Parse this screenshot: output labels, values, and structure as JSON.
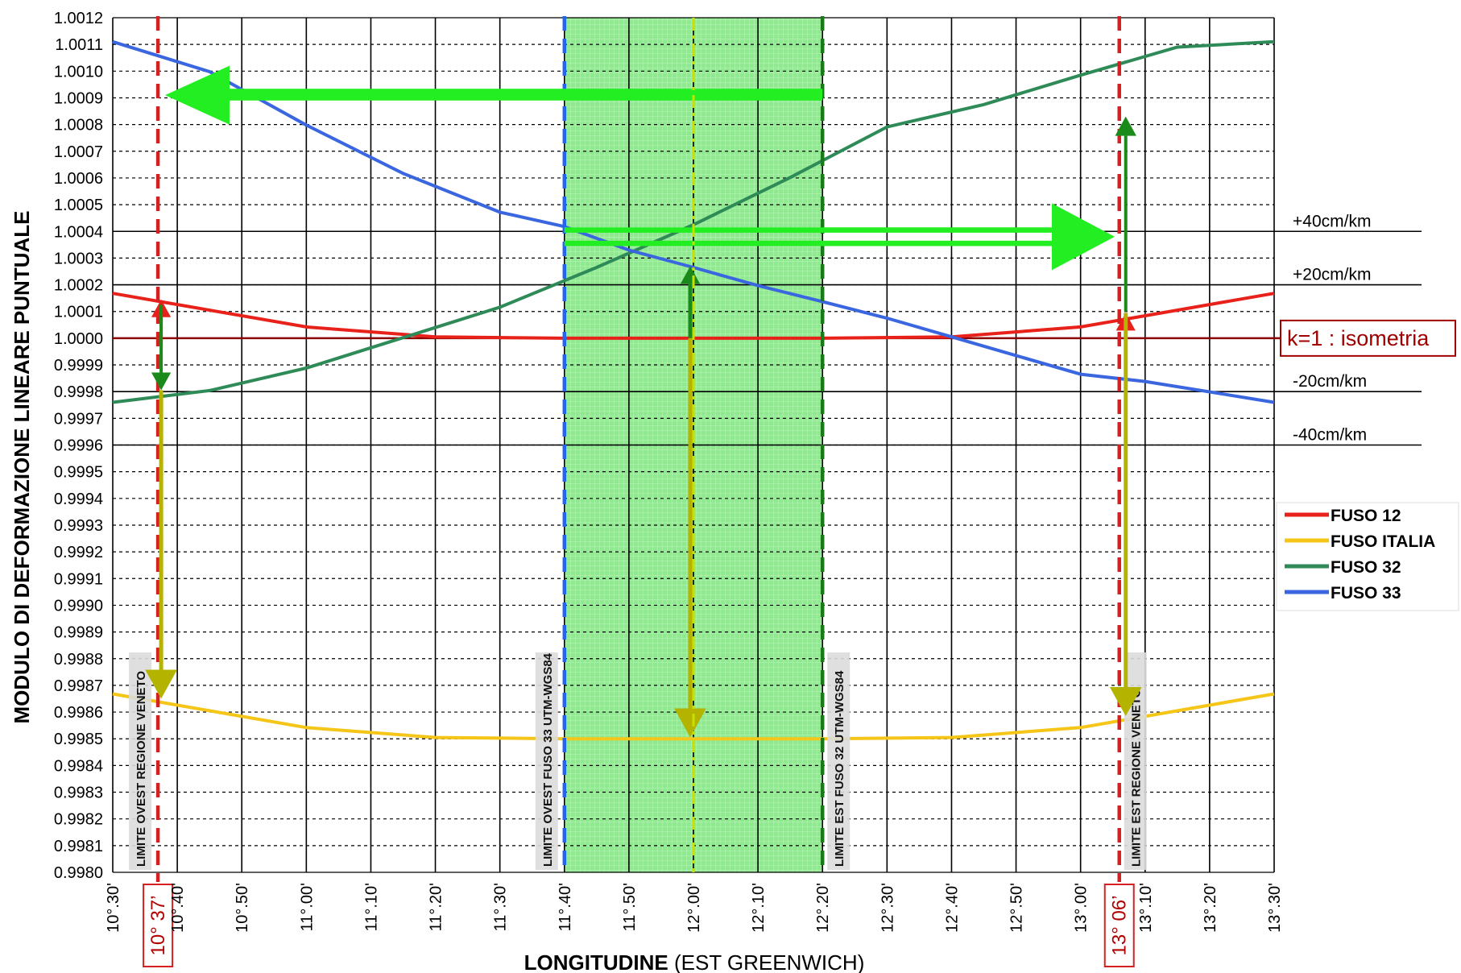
{
  "chart_data": {
    "type": "line",
    "ylabel": "MODULO DI DEFORMAZIONE LINEARE PUNTUALE",
    "xlabel_bold": "LONGITUDINE",
    "xlabel_rest": " (EST GREENWICH)",
    "ylim": [
      0.998,
      1.0012
    ],
    "y_step": 0.0001,
    "y_ticks": [
      "1.0012",
      "1.0011",
      "1.0010",
      "1.0009",
      "1.0008",
      "1.0007",
      "1.0006",
      "1.0005",
      "1.0004",
      "1.0003",
      "1.0002",
      "1.0001",
      "1.0000",
      "0.9999",
      "0.9998",
      "0.9997",
      "0.9996",
      "0.9995",
      "0.9994",
      "0.9993",
      "0.9992",
      "0.9991",
      "0.9990",
      "0.9989",
      "0.9988",
      "0.9987",
      "0.9986",
      "0.9985",
      "0.9984",
      "0.9983",
      "0.9982",
      "0.9981",
      "0.9980"
    ],
    "x_ticks": [
      {
        "deg": 10.5,
        "label": "10°.30'"
      },
      {
        "deg": 10.6667,
        "label": "10°.40'"
      },
      {
        "deg": 10.8333,
        "label": "10°.50'"
      },
      {
        "deg": 11.0,
        "label": "11°.00'"
      },
      {
        "deg": 11.1667,
        "label": "11°.10'"
      },
      {
        "deg": 11.3333,
        "label": "11°.20'"
      },
      {
        "deg": 11.5,
        "label": "11°.30'"
      },
      {
        "deg": 11.6667,
        "label": "11°.40'"
      },
      {
        "deg": 11.8333,
        "label": "11°.50'"
      },
      {
        "deg": 12.0,
        "label": "12°.00'"
      },
      {
        "deg": 12.1667,
        "label": "12°.10'"
      },
      {
        "deg": 12.3333,
        "label": "12°.20'"
      },
      {
        "deg": 12.5,
        "label": "12°.30'"
      },
      {
        "deg": 12.6667,
        "label": "12°.40'"
      },
      {
        "deg": 12.8333,
        "label": "12°.50'"
      },
      {
        "deg": 13.0,
        "label": "13°.00'"
      },
      {
        "deg": 13.1667,
        "label": "13°.10'"
      },
      {
        "deg": 13.3333,
        "label": "13°.20'"
      },
      {
        "deg": 13.5,
        "label": "13°.30'"
      }
    ],
    "xlim": [
      10.5,
      13.5
    ],
    "series": [
      {
        "name": "FUSO 12",
        "color": "#e8211a",
        "points": [
          [
            10.5,
            1.000168
          ],
          [
            11.0,
            1.000042
          ],
          [
            11.3333,
            1.000005
          ],
          [
            11.6667,
            1.0
          ],
          [
            12.3333,
            1.0
          ],
          [
            12.6667,
            1.000005
          ],
          [
            13.0,
            1.000042
          ],
          [
            13.5,
            1.000168
          ]
        ]
      },
      {
        "name": "FUSO ITALIA",
        "color": "#f5c518",
        "points": [
          [
            10.5,
            0.998668
          ],
          [
            11.0,
            0.998542
          ],
          [
            11.3333,
            0.998505
          ],
          [
            11.6667,
            0.9985
          ],
          [
            12.3333,
            0.9985
          ],
          [
            12.6667,
            0.998505
          ],
          [
            13.0,
            0.998542
          ],
          [
            13.5,
            0.998668
          ]
        ]
      },
      {
        "name": "FUSO 32",
        "color": "#2e8b57",
        "points": [
          [
            10.5,
            0.99976
          ],
          [
            10.75,
            0.999804
          ],
          [
            11.0,
            0.999888
          ],
          [
            11.25,
            1.000002
          ],
          [
            11.5,
            1.000116
          ],
          [
            11.75,
            1.000265
          ],
          [
            12.0,
            1.000425
          ],
          [
            12.25,
            1.000602
          ],
          [
            12.5,
            1.000791
          ],
          [
            12.75,
            1.000875
          ],
          [
            13.0,
            1.000985
          ],
          [
            13.25,
            1.00109
          ],
          [
            13.5,
            1.00111
          ]
        ]
      },
      {
        "name": "FUSO 33",
        "color": "#3a66e0",
        "points": [
          [
            10.5,
            1.00111
          ],
          [
            10.75,
            1.000998
          ],
          [
            11.0,
            1.000798
          ],
          [
            11.25,
            1.000617
          ],
          [
            11.5,
            1.000472
          ],
          [
            11.6667,
            1.000418
          ],
          [
            11.8333,
            1.00033
          ],
          [
            12.0,
            1.000265
          ],
          [
            12.1667,
            1.000197
          ],
          [
            12.3333,
            1.000137
          ],
          [
            12.5,
            1.000075
          ],
          [
            12.6667,
            1.000005
          ],
          [
            12.8333,
            0.999935
          ],
          [
            13.0,
            0.999865
          ],
          [
            13.1667,
            0.999838
          ],
          [
            13.5,
            0.99976
          ]
        ]
      }
    ],
    "reference_lines": [
      {
        "y": 1.0004,
        "label": "+40cm/km"
      },
      {
        "y": 1.0002,
        "label": "+20cm/km"
      },
      {
        "y": 0.9998,
        "label": "-20cm/km"
      },
      {
        "y": 0.9996,
        "label": "-40cm/km"
      }
    ],
    "isometry": {
      "y": 1.0,
      "label": "k=1 : isometria"
    },
    "zone": {
      "from": 11.6667,
      "to": 12.3333
    },
    "limits": [
      {
        "deg": 10.6167,
        "label": "LIMITE OVEST REGIONE VENETO",
        "callout": "10° 37’",
        "color": "#d42020"
      },
      {
        "deg": 11.6667,
        "label": "LIMITE OVEST FUSO 33 UTM-WGS84",
        "callout": "",
        "color": "#2266ee"
      },
      {
        "deg": 12.3333,
        "label": "LIMITE EST FUSO 32 UTM-WGS84",
        "callout": "",
        "color": "#1a7a1a"
      },
      {
        "deg": 13.1,
        "label": "LIMITE EST REGIONE VENETO",
        "callout": "13° 06’",
        "color": "#d42020"
      }
    ],
    "legend": [
      {
        "name": "FUSO 12",
        "color": "#e8211a"
      },
      {
        "name": "FUSO ITALIA",
        "color": "#f5c518"
      },
      {
        "name": "FUSO 32",
        "color": "#2e8b57"
      },
      {
        "name": "FUSO 33",
        "color": "#3a66e0"
      }
    ],
    "legend_placement": "right",
    "grid": true
  }
}
